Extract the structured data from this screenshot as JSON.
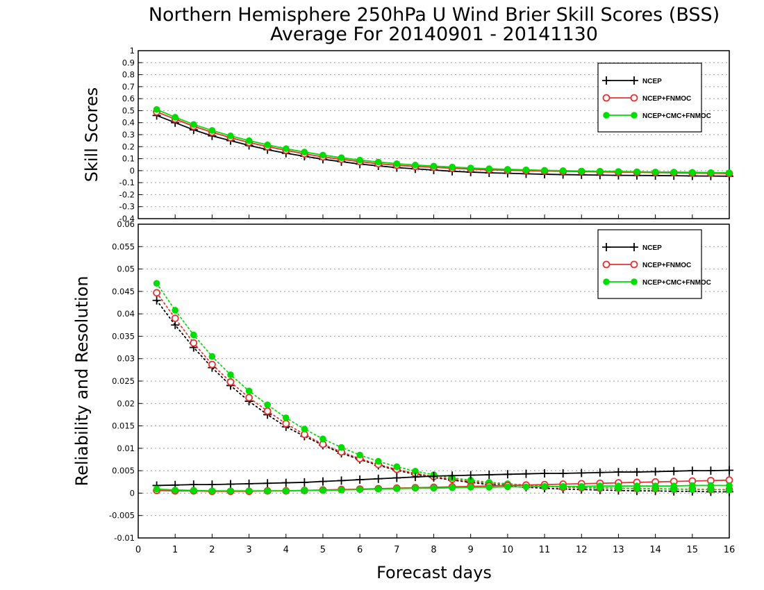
{
  "chart_data": {
    "type": "line",
    "title": "Northern Hemisphere 250hPa U Wind Brier Skill Scores (BSS)",
    "subtitle": "Average For 20140901 - 20141130",
    "xlabel": "Forecast days",
    "xlim": [
      0,
      16
    ],
    "xticks": [
      "0",
      "1",
      "2",
      "3",
      "4",
      "5",
      "6",
      "7",
      "8",
      "9",
      "10",
      "11",
      "12",
      "13",
      "14",
      "15",
      "16"
    ],
    "x": [
      0.5,
      1,
      1.5,
      2,
      2.5,
      3,
      3.5,
      4,
      4.5,
      5,
      5.5,
      6,
      6.5,
      7,
      7.5,
      8,
      8.5,
      9,
      9.5,
      10,
      10.5,
      11,
      11.5,
      12,
      12.5,
      13,
      13.5,
      14,
      14.5,
      15,
      15.5,
      16
    ],
    "colors": {
      "NCEP": "#000000",
      "NCEP+FNMOC": "#e83030",
      "NCEP+CMC+FNMOC": "#00dd00"
    },
    "panels": [
      {
        "ylabel": "Skill Scores",
        "ylim": [
          -0.4,
          1
        ],
        "yticks": [
          "-0.4",
          "-0.3",
          "-0.2",
          "-0.1",
          "0",
          "0.1",
          "0.2",
          "0.3",
          "0.4",
          "0.5",
          "0.6",
          "0.7",
          "0.8",
          "0.9",
          "1"
        ],
        "legend": {
          "position": "top-right",
          "entries": [
            "NCEP",
            "NCEP+FNMOC",
            "NCEP+CMC+FNMOC"
          ]
        },
        "series": [
          {
            "name": "NCEP",
            "marker": "plus",
            "line": "solid",
            "values": [
              0.46,
              0.4,
              0.34,
              0.29,
              0.25,
              0.21,
              0.175,
              0.145,
              0.12,
              0.095,
              0.075,
              0.055,
              0.04,
              0.025,
              0.015,
              0.005,
              -0.005,
              -0.012,
              -0.018,
              -0.022,
              -0.026,
              -0.03,
              -0.033,
              -0.035,
              -0.037,
              -0.039,
              -0.04,
              -0.041,
              -0.042,
              -0.044,
              -0.045,
              -0.046
            ]
          },
          {
            "name": "NCEP+FNMOC",
            "marker": "open-circle",
            "line": "solid",
            "values": [
              0.49,
              0.43,
              0.37,
              0.32,
              0.275,
              0.235,
              0.2,
              0.17,
              0.14,
              0.115,
              0.095,
              0.075,
              0.058,
              0.045,
              0.035,
              0.028,
              0.02,
              0.013,
              0.007,
              0.003,
              0.0,
              -0.003,
              -0.006,
              -0.008,
              -0.01,
              -0.012,
              -0.014,
              -0.016,
              -0.018,
              -0.02,
              -0.022,
              -0.024
            ]
          },
          {
            "name": "NCEP+CMC+FNMOC",
            "marker": "filled-circle",
            "line": "solid",
            "values": [
              0.51,
              0.445,
              0.385,
              0.335,
              0.29,
              0.25,
              0.215,
              0.183,
              0.155,
              0.13,
              0.108,
              0.088,
              0.072,
              0.058,
              0.047,
              0.038,
              0.03,
              0.022,
              0.016,
              0.011,
              0.007,
              0.003,
              0.0,
              -0.003,
              -0.005,
              -0.007,
              -0.009,
              -0.011,
              -0.012,
              -0.014,
              -0.016,
              -0.018
            ]
          }
        ]
      },
      {
        "ylabel": "Reliability and Resolution",
        "ylim": [
          -0.01,
          0.06
        ],
        "yticks": [
          "-0.01",
          "-0.005",
          "0",
          "0.005",
          "0.01",
          "0.015",
          "0.02",
          "0.025",
          "0.03",
          "0.035",
          "0.04",
          "0.045",
          "0.05",
          "0.055",
          "0.06"
        ],
        "legend": {
          "position": "top-right",
          "entries": [
            "NCEP",
            "NCEP+FNMOC",
            "NCEP+CMC+FNMOC"
          ]
        },
        "series": [
          {
            "name": "NCEP",
            "metric": "resolution",
            "marker": "plus",
            "line": "dotted",
            "values": [
              0.043,
              0.0375,
              0.0325,
              0.028,
              0.024,
              0.0205,
              0.0175,
              0.0148,
              0.0127,
              0.0107,
              0.0089,
              0.0075,
              0.0062,
              0.0051,
              0.0042,
              0.0035,
              0.0029,
              0.0024,
              0.0019,
              0.0016,
              0.0013,
              0.0011,
              0.0009,
              0.0008,
              0.0007,
              0.0006,
              0.0005,
              0.0005,
              0.0004,
              0.0004,
              0.0003,
              0.0003
            ]
          },
          {
            "name": "NCEP+FNMOC",
            "metric": "resolution",
            "marker": "open-circle",
            "line": "dotted",
            "values": [
              0.0447,
              0.039,
              0.0335,
              0.0287,
              0.0248,
              0.0213,
              0.0183,
              0.0155,
              0.0131,
              0.0109,
              0.0092,
              0.0077,
              0.0064,
              0.0053,
              0.0044,
              0.0037,
              0.0031,
              0.0026,
              0.0022,
              0.0019,
              0.0017,
              0.0015,
              0.0013,
              0.0012,
              0.0011,
              0.0011,
              0.001,
              0.001,
              0.0009,
              0.0009,
              0.0008,
              0.0008
            ]
          },
          {
            "name": "NCEP+CMC+FNMOC",
            "metric": "resolution",
            "marker": "filled-circle",
            "line": "dotted",
            "values": [
              0.0468,
              0.0408,
              0.0353,
              0.0305,
              0.0264,
              0.0228,
              0.0197,
              0.0168,
              0.0143,
              0.0121,
              0.0102,
              0.0085,
              0.0071,
              0.0059,
              0.0049,
              0.0041,
              0.0034,
              0.0029,
              0.0024,
              0.0021,
              0.0018,
              0.0016,
              0.0014,
              0.0013,
              0.0012,
              0.0011,
              0.001,
              0.001,
              0.0009,
              0.0008,
              0.0008,
              0.0007
            ]
          },
          {
            "name": "NCEP",
            "metric": "reliability",
            "marker": "plus",
            "line": "solid",
            "values": [
              0.0017,
              0.0018,
              0.0019,
              0.0019,
              0.002,
              0.0021,
              0.0022,
              0.0023,
              0.0024,
              0.0026,
              0.0028,
              0.003,
              0.0032,
              0.0034,
              0.0036,
              0.0038,
              0.0039,
              0.004,
              0.0041,
              0.0042,
              0.0043,
              0.0044,
              0.0044,
              0.0045,
              0.0046,
              0.0047,
              0.0047,
              0.0048,
              0.0049,
              0.005,
              0.005,
              0.0051
            ]
          },
          {
            "name": "NCEP+FNMOC",
            "metric": "reliability",
            "marker": "open-circle",
            "line": "solid",
            "values": [
              0.0006,
              0.0005,
              0.0005,
              0.0004,
              0.0004,
              0.0004,
              0.0005,
              0.0005,
              0.0006,
              0.0007,
              0.0008,
              0.0009,
              0.001,
              0.0011,
              0.0012,
              0.0013,
              0.0014,
              0.0015,
              0.0016,
              0.0017,
              0.0018,
              0.0019,
              0.002,
              0.0021,
              0.0022,
              0.0023,
              0.0024,
              0.0025,
              0.0026,
              0.0027,
              0.0028,
              0.0029
            ]
          },
          {
            "name": "NCEP+CMC+FNMOC",
            "metric": "reliability",
            "marker": "filled-circle",
            "line": "solid",
            "values": [
              0.0009,
              0.0007,
              0.0006,
              0.0005,
              0.0005,
              0.0005,
              0.0005,
              0.0005,
              0.0006,
              0.0006,
              0.0007,
              0.0008,
              0.0009,
              0.001,
              0.0011,
              0.0011,
              0.0012,
              0.0013,
              0.0013,
              0.0014,
              0.0014,
              0.0015,
              0.0015,
              0.0015,
              0.0016,
              0.0016,
              0.0016,
              0.0016,
              0.0016,
              0.0017,
              0.0017,
              0.0017
            ]
          }
        ]
      }
    ]
  }
}
